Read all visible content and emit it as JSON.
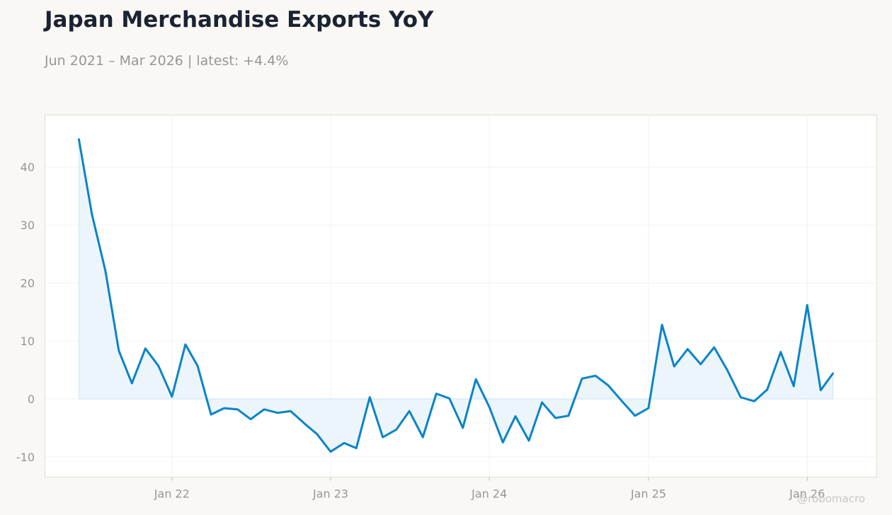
{
  "header": {
    "title": "Japan Merchandise Exports YoY",
    "subtitle": "Jun 2021 – Mar 2026 | latest: +4.4%"
  },
  "watermark": "@robomacro",
  "colors": {
    "line": "#0a84c6",
    "fill": "#e7f2fb",
    "grid": "#eeeeee",
    "frame": "#e2ddd5"
  },
  "chart_data": {
    "type": "line",
    "title": "Japan Merchandise Exports YoY",
    "subtitle": "Jun 2021 – Mar 2026 | latest: +4.4%",
    "xlabel": "",
    "ylabel": "",
    "ylim": [
      -13.5,
      49
    ],
    "xlim": [
      "2021-03-15",
      "2026-06-10"
    ],
    "grid": true,
    "legend": "none",
    "x_ticks": [
      {
        "date": "2022-01-01",
        "label": "Jan 22"
      },
      {
        "date": "2023-01-01",
        "label": "Jan 23"
      },
      {
        "date": "2024-01-01",
        "label": "Jan 24"
      },
      {
        "date": "2025-01-01",
        "label": "Jan 25"
      },
      {
        "date": "2026-01-01",
        "label": "Jan 26"
      }
    ],
    "y_ticks": [
      {
        "value": -10,
        "label": "-10"
      },
      {
        "value": 0,
        "label": "0"
      },
      {
        "value": 10,
        "label": "10"
      },
      {
        "value": 20,
        "label": "20"
      },
      {
        "value": 30,
        "label": "30"
      },
      {
        "value": 40,
        "label": "40"
      }
    ],
    "series": [
      {
        "x": [
          "2021-06",
          "2021-07",
          "2021-08",
          "2021-09",
          "2021-10",
          "2021-11",
          "2021-12",
          "2022-01",
          "2022-02",
          "2022-03",
          "2022-04",
          "2022-05",
          "2022-06",
          "2022-07",
          "2022-08",
          "2022-09",
          "2022-10",
          "2022-11",
          "2022-12",
          "2023-01",
          "2023-02",
          "2023-03",
          "2023-04",
          "2023-05",
          "2023-06",
          "2023-07",
          "2023-08",
          "2023-09",
          "2023-10",
          "2023-11",
          "2023-12",
          "2024-01",
          "2024-02",
          "2024-03",
          "2024-04",
          "2024-05",
          "2024-06",
          "2024-07",
          "2024-08",
          "2024-09",
          "2024-10",
          "2024-11",
          "2024-12",
          "2025-01",
          "2025-02",
          "2025-03",
          "2025-04",
          "2025-05",
          "2025-06",
          "2025-07",
          "2025-08",
          "2025-09",
          "2025-10",
          "2025-11",
          "2025-12",
          "2026-01",
          "2026-02",
          "2026-03"
        ],
        "values": [
          44.8,
          31.9,
          22.1,
          8.3,
          2.7,
          8.7,
          5.7,
          0.4,
          9.4,
          5.7,
          -2.7,
          -1.6,
          -1.8,
          -3.5,
          -1.8,
          -2.4,
          -2.1,
          -4.2,
          -6.1,
          -9.1,
          -7.6,
          -8.5,
          0.3,
          -6.6,
          -5.3,
          -2.1,
          -6.6,
          0.9,
          0.1,
          -5.0,
          3.4,
          -1.4,
          -7.5,
          -3.0,
          -7.2,
          -0.6,
          -3.3,
          -2.9,
          3.5,
          4.0,
          2.3,
          -0.4,
          -2.9,
          -1.6,
          12.8,
          5.6,
          8.6,
          6.0,
          8.9,
          5.0,
          0.3,
          -0.4,
          1.6,
          8.1,
          2.2,
          16.2,
          1.5,
          4.4
        ]
      }
    ]
  }
}
